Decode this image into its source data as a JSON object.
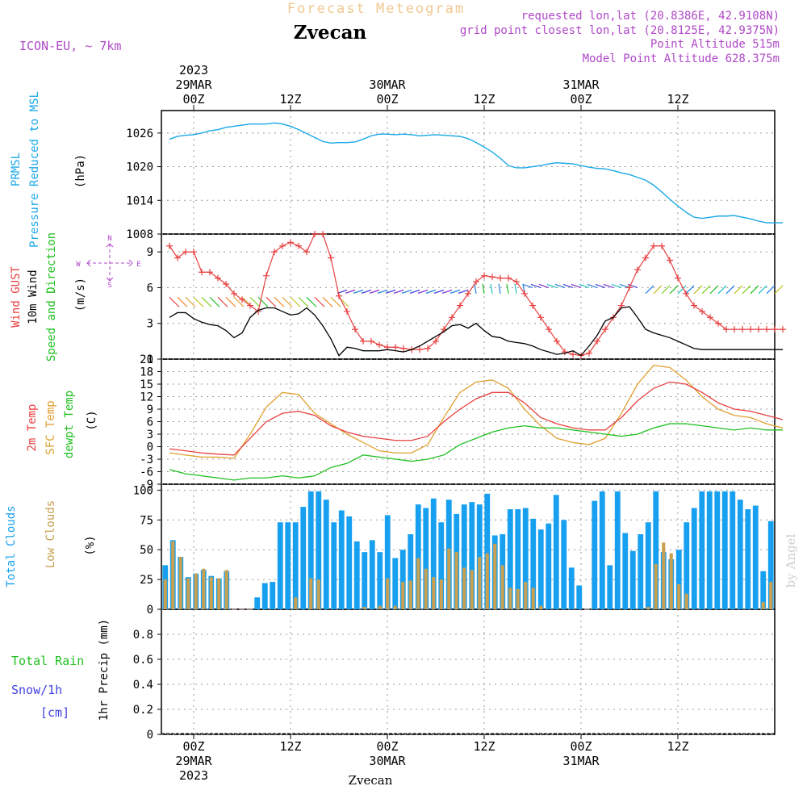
{
  "header": {
    "title": "Forecast Meteogram",
    "location": "Zvecan",
    "model": "ICON-EU, ~ 7km",
    "requested": "requested lon,lat (20.8386E, 42.9108N)",
    "grid": "grid point closest lon,lat (20.8125E, 42.9375N)",
    "altitude": "Point Altitude 515m",
    "model_altitude": "Model Point Altitude 628.375m",
    "footer": "Zvecan",
    "watermark": "by Angel"
  },
  "time_axis": {
    "top": [
      {
        "label": "00Z",
        "date": "29MAR",
        "year": "2023"
      },
      {
        "label": "12Z",
        "date": "",
        "year": ""
      },
      {
        "label": "00Z",
        "date": "30MAR",
        "year": ""
      },
      {
        "label": "12Z",
        "date": "",
        "year": ""
      },
      {
        "label": "00Z",
        "date": "31MAR",
        "year": ""
      },
      {
        "label": "12Z",
        "date": "",
        "year": ""
      }
    ],
    "bottom": [
      {
        "label": "00Z",
        "date": "29MAR",
        "year": "2023"
      },
      {
        "label": "12Z",
        "date": "",
        "year": ""
      },
      {
        "label": "00Z",
        "date": "30MAR",
        "year": ""
      },
      {
        "label": "12Z",
        "date": "",
        "year": ""
      },
      {
        "label": "00Z",
        "date": "31MAR",
        "year": ""
      },
      {
        "label": "12Z",
        "date": "",
        "year": ""
      }
    ]
  },
  "colors": {
    "pressure": "#1aa8e8",
    "gust": "#e84040",
    "wind": "#000000",
    "t2m": "#e84040",
    "sfc": "#e0a030",
    "dew": "#20c020",
    "total_clouds": "#18a0f0",
    "low_clouds": "#c8a050",
    "rain": "#20c020",
    "snow": "#4040e0",
    "purple": "#b048c8",
    "title": "#f0c890"
  },
  "labels": {
    "prmsl_a": "PRMSL",
    "prmsl_b": "Pressure Reduced to MSL",
    "hpa": "(hPa)",
    "gust": "Wind GUST",
    "wind10": "10m Wind",
    "speed_dir": "Speed and Direction",
    "ms": "(m/s)",
    "t2m": "2m Temp",
    "sfc": "SFC Temp",
    "dew": "dewpt Temp",
    "degc": "(C)",
    "total_clouds": "Total Clouds",
    "low_clouds": "Low Clouds",
    "pct": "(%)",
    "total_rain": "Total  Rain",
    "snow": "Snow/1h",
    "cm": "[cm]",
    "precip": "1hr Precip (mm)",
    "compass_n": "N",
    "compass_s": "S",
    "compass_w": "W",
    "compass_e": "E"
  },
  "chart_data": [
    {
      "type": "line",
      "name": "pressure",
      "x_hours": [
        0,
        2,
        4,
        6,
        8,
        10,
        12,
        14,
        16,
        18,
        20,
        22,
        24,
        26,
        28,
        30,
        32,
        34,
        36,
        38,
        40,
        42,
        44,
        46,
        48,
        50,
        52,
        54,
        56,
        58,
        60,
        62,
        64,
        66,
        68,
        70,
        72,
        74,
        76,
        78,
        80,
        82,
        84,
        86,
        88,
        90,
        92,
        94,
        96,
        98,
        100,
        102,
        104,
        106,
        108,
        110,
        112,
        114,
        116,
        118,
        120,
        122,
        124,
        126,
        128,
        130,
        132,
        134,
        136,
        138,
        140,
        142,
        144,
        146,
        148,
        150,
        152
      ],
      "values": [
        1024.9,
        1025.4,
        1025.6,
        1025.7,
        1026.0,
        1026.4,
        1026.6,
        1027.0,
        1027.2,
        1027.4,
        1027.6,
        1027.6,
        1027.6,
        1027.8,
        1027.6,
        1027.2,
        1026.6,
        1025.9,
        1025.2,
        1024.5,
        1024.2,
        1024.3,
        1024.3,
        1024.4,
        1024.9,
        1025.5,
        1025.8,
        1025.8,
        1025.7,
        1025.8,
        1025.7,
        1025.5,
        1025.6,
        1025.7,
        1025.6,
        1025.5,
        1025.4,
        1025.0,
        1024.3,
        1023.5,
        1022.6,
        1021.5,
        1020.2,
        1019.8,
        1019.8,
        1020.0,
        1020.2,
        1020.5,
        1020.7,
        1020.6,
        1020.5,
        1020.2,
        1019.9,
        1019.7,
        1019.6,
        1019.3,
        1018.9,
        1018.6,
        1018.1,
        1017.6,
        1016.7,
        1015.5,
        1014.2,
        1013.0,
        1011.9,
        1011.0,
        1010.8,
        1011.0,
        1011.2,
        1011.2,
        1011.3,
        1011.0,
        1010.7,
        1010.3,
        1010.0,
        1010.0,
        1010.0
      ],
      "ylim": [
        1008,
        1030
      ],
      "yticks": [
        1008,
        1014,
        1020,
        1026
      ]
    },
    {
      "type": "line",
      "name": "wind",
      "x_hours": [
        0,
        2,
        4,
        6,
        8,
        10,
        12,
        14,
        16,
        18,
        20,
        22,
        24,
        26,
        28,
        30,
        32,
        34,
        36,
        38,
        40,
        42,
        44,
        46,
        48,
        50,
        52,
        54,
        56,
        58,
        60,
        62,
        64,
        66,
        68,
        70,
        72,
        74,
        76,
        78,
        80,
        82,
        84,
        86,
        88,
        90,
        92,
        94,
        96,
        98,
        100,
        102,
        104,
        106,
        108,
        110,
        112,
        114,
        116,
        118,
        120,
        122,
        124,
        126,
        128,
        130,
        132,
        134,
        136,
        138,
        140,
        142,
        144,
        146,
        148,
        150,
        152
      ],
      "gust": [
        9.5,
        8.5,
        9.0,
        9.0,
        7.3,
        7.3,
        6.8,
        6.3,
        5.5,
        5.0,
        4.5,
        4.0,
        7.0,
        9.0,
        9.5,
        9.8,
        9.5,
        9.0,
        10.5,
        10.5,
        8.5,
        5.3,
        4.0,
        2.5,
        1.5,
        1.5,
        1.2,
        1.0,
        1.0,
        0.9,
        0.8,
        0.8,
        0.9,
        1.5,
        2.5,
        3.5,
        4.5,
        5.5,
        6.5,
        7.0,
        6.9,
        6.8,
        6.8,
        6.5,
        5.5,
        4.5,
        3.5,
        2.5,
        1.5,
        0.6,
        0.4,
        0.3,
        0.5,
        1.5,
        2.5,
        3.5,
        4.5,
        6.0,
        7.5,
        8.5,
        9.5,
        9.5,
        8.3,
        6.8,
        5.5,
        4.5,
        4.0,
        3.5,
        3.0,
        2.5,
        2.5,
        2.5,
        2.5,
        2.5,
        2.5,
        2.5,
        2.5
      ],
      "speed": [
        3.5,
        3.9,
        3.9,
        3.4,
        3.1,
        2.9,
        2.8,
        2.4,
        1.8,
        2.2,
        3.5,
        4.1,
        4.3,
        4.3,
        4.0,
        3.7,
        3.8,
        4.3,
        3.7,
        2.8,
        1.7,
        0.3,
        1.0,
        0.9,
        0.7,
        0.7,
        0.7,
        0.8,
        0.7,
        0.6,
        0.8,
        1.1,
        1.5,
        1.9,
        2.3,
        2.8,
        2.9,
        2.6,
        3.0,
        2.4,
        1.9,
        1.8,
        1.5,
        1.4,
        1.3,
        1.1,
        0.8,
        0.6,
        0.4,
        0.5,
        0.7,
        0.3,
        1.1,
        2.0,
        3.2,
        3.5,
        4.3,
        4.4,
        3.5,
        2.5,
        2.2,
        2.0,
        1.8,
        1.5,
        1.2,
        0.9,
        0.8,
        0.8,
        0.8,
        0.8,
        0.8,
        0.8,
        0.8,
        0.8,
        0.8,
        0.8,
        0.8
      ],
      "ylim": [
        0,
        10.5
      ],
      "yticks": [
        0,
        3,
        6,
        9
      ]
    },
    {
      "type": "line",
      "name": "temperature",
      "x_hours": [
        0,
        4,
        8,
        12,
        16,
        20,
        24,
        28,
        32,
        36,
        40,
        44,
        48,
        52,
        56,
        60,
        64,
        68,
        72,
        76,
        80,
        84,
        88,
        92,
        96,
        100,
        104,
        108,
        112,
        116,
        120,
        124,
        128,
        132,
        136,
        140,
        144,
        148,
        152
      ],
      "t2m": [
        -0.5,
        -1.0,
        -1.5,
        -1.8,
        -2.0,
        2.0,
        6.0,
        8.0,
        8.5,
        7.5,
        5.0,
        3.5,
        2.5,
        2.0,
        1.5,
        1.5,
        2.5,
        6.0,
        9.0,
        11.5,
        13.0,
        13.0,
        10.5,
        7.0,
        5.5,
        4.5,
        4.0,
        4.0,
        7.0,
        11.0,
        14.0,
        15.5,
        15.0,
        13.0,
        10.5,
        9.0,
        8.5,
        7.5,
        6.5
      ],
      "sfc": [
        -1.5,
        -2.0,
        -2.5,
        -2.5,
        -2.8,
        3.0,
        9.5,
        13.0,
        12.5,
        8.0,
        5.5,
        3.0,
        1.0,
        -1.0,
        -1.5,
        -1.5,
        0.5,
        7.0,
        13.0,
        15.5,
        16.0,
        14.0,
        9.0,
        5.0,
        2.0,
        1.0,
        0.5,
        2.0,
        8.0,
        15.0,
        19.5,
        19.0,
        16.0,
        12.0,
        9.0,
        7.5,
        7.0,
        5.5,
        4.5
      ],
      "dew": [
        -5.5,
        -6.5,
        -7.0,
        -7.5,
        -8.0,
        -7.5,
        -7.5,
        -7.0,
        -7.5,
        -7.0,
        -5.0,
        -4.0,
        -2.0,
        -2.5,
        -3.0,
        -3.5,
        -3.0,
        -2.0,
        0.5,
        2.0,
        3.5,
        4.5,
        5.0,
        4.5,
        4.5,
        4.0,
        3.5,
        3.0,
        2.5,
        3.0,
        4.5,
        5.5,
        5.5,
        5.0,
        4.5,
        4.0,
        4.5,
        4.0,
        4.0
      ],
      "ylim": [
        -9,
        21
      ],
      "yticks": [
        -9,
        -6,
        -3,
        0,
        3,
        6,
        9,
        12,
        15,
        18,
        21
      ]
    },
    {
      "type": "bar",
      "name": "clouds",
      "total": [
        37,
        58,
        44,
        27,
        30,
        33,
        28,
        26,
        32,
        0,
        0,
        0,
        10,
        22,
        23,
        73,
        73,
        73,
        86,
        99,
        99,
        92,
        73,
        83,
        78,
        57,
        48,
        58,
        48,
        79,
        43,
        50,
        63,
        88,
        85,
        93,
        73,
        92,
        80,
        88,
        90,
        88,
        97,
        62,
        63,
        84,
        84,
        85,
        76,
        67,
        72,
        96,
        75,
        35,
        20,
        0,
        91,
        99,
        37,
        99,
        64,
        49,
        63,
        73,
        99,
        48,
        42,
        50,
        73,
        85,
        99,
        99,
        99,
        99,
        99,
        92,
        84,
        87,
        32,
        74
      ],
      "low": [
        25,
        57,
        44,
        26,
        30,
        34,
        27,
        26,
        33,
        0,
        0,
        0,
        0,
        0,
        0,
        0,
        0,
        10,
        0,
        26,
        25,
        0,
        0,
        0,
        0,
        0,
        2,
        0,
        3,
        26,
        3,
        23,
        24,
        43,
        34,
        27,
        25,
        51,
        48,
        35,
        33,
        44,
        47,
        55,
        37,
        18,
        17,
        23,
        18,
        3,
        0,
        0,
        0,
        0,
        0,
        0,
        0,
        0,
        0,
        0,
        0,
        0,
        0,
        2,
        38,
        56,
        47,
        21,
        13,
        0,
        0,
        0,
        0,
        0,
        0,
        0,
        0,
        0,
        6,
        23
      ],
      "ylim": [
        0,
        105
      ],
      "yticks": [
        0,
        25,
        50,
        75,
        100
      ]
    },
    {
      "type": "bar",
      "name": "precip",
      "values": [],
      "ylim": [
        0,
        1.0
      ],
      "yticks": [
        0,
        0.2,
        0.4,
        0.6,
        0.8
      ]
    }
  ]
}
